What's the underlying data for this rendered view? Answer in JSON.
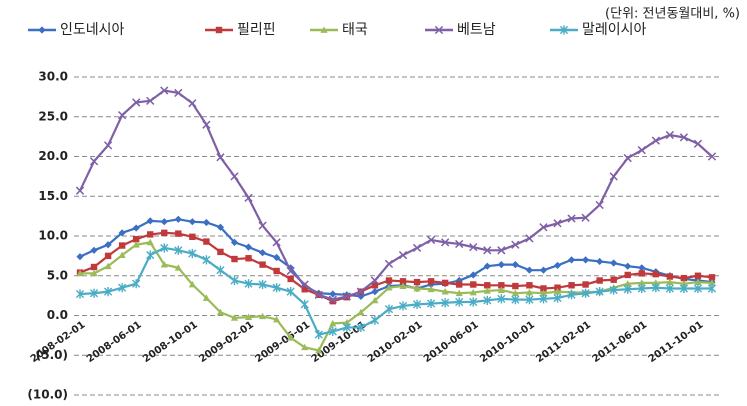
{
  "chart_data": {
    "type": "line",
    "unit_note": "(단위: 전년동월대비, %)",
    "categories": [
      "2008-02-01",
      null,
      null,
      null,
      "2008-06-01",
      null,
      null,
      null,
      "2008-10-01",
      null,
      null,
      null,
      "2009-02-01",
      null,
      null,
      null,
      "2009-06-01",
      null,
      null,
      null,
      "2009-10-01",
      null,
      null,
      null,
      "2010-02-01",
      null,
      null,
      null,
      "2010-06-01",
      null,
      null,
      null,
      "2010-10-01",
      null,
      null,
      null,
      "2011-02-01",
      null,
      null,
      null,
      "2011-06-01",
      null,
      null,
      null,
      "2011-10-01",
      null
    ],
    "series": [
      {
        "name": "인도네시아",
        "color": "#3a6fc4",
        "marker": "diamond",
        "values": [
          7.4,
          8.2,
          8.9,
          10.4,
          11.0,
          11.9,
          11.8,
          12.1,
          11.8,
          11.7,
          11.1,
          9.2,
          8.6,
          7.9,
          7.3,
          6.0,
          3.7,
          2.8,
          2.7,
          2.6,
          2.4,
          3.0,
          3.7,
          3.8,
          3.4,
          3.9,
          4.0,
          4.4,
          5.1,
          6.2,
          6.4,
          6.4,
          5.7,
          5.7,
          6.3,
          7.0,
          7.0,
          6.8,
          6.6,
          6.2,
          6.0,
          5.5,
          5.0,
          4.6,
          4.4,
          4.2
        ]
      },
      {
        "name": "필리핀",
        "color": "#c0393b",
        "marker": "square",
        "values": [
          5.4,
          6.1,
          7.5,
          8.8,
          9.6,
          10.2,
          10.4,
          10.3,
          9.9,
          9.3,
          8.0,
          7.1,
          7.2,
          6.4,
          5.6,
          4.6,
          3.3,
          2.6,
          1.8,
          2.3,
          3.0,
          3.8,
          4.4,
          4.3,
          4.2,
          4.3,
          4.1,
          3.9,
          3.9,
          3.8,
          3.8,
          3.7,
          3.8,
          3.4,
          3.5,
          3.8,
          3.9,
          4.4,
          4.5,
          5.1,
          5.3,
          5.2,
          4.9,
          4.7,
          5.0,
          4.8
        ]
      },
      {
        "name": "태국",
        "color": "#9bbb59",
        "marker": "triangle",
        "values": [
          5.3,
          5.3,
          6.2,
          7.6,
          8.9,
          9.2,
          6.4,
          6.0,
          3.9,
          2.2,
          0.4,
          -0.3,
          -0.2,
          -0.1,
          -0.5,
          -2.8,
          -4.0,
          -4.4,
          -1.0,
          -0.9,
          0.4,
          1.9,
          3.5,
          3.7,
          3.4,
          3.3,
          3.0,
          2.8,
          2.9,
          3.1,
          3.2,
          2.8,
          2.9,
          2.8,
          3.0,
          2.9,
          2.9,
          3.0,
          3.5,
          4.0,
          4.1,
          4.1,
          4.2,
          4.0,
          4.2,
          4.1
        ]
      },
      {
        "name": "베트남",
        "color": "#7f5fa6",
        "marker": "x",
        "values": [
          15.7,
          19.4,
          21.4,
          25.2,
          26.8,
          27.0,
          28.3,
          28.0,
          26.7,
          24.0,
          19.9,
          17.5,
          14.8,
          11.3,
          9.2,
          5.6,
          3.9,
          2.6,
          2.0,
          2.4,
          3.0,
          4.4,
          6.5,
          7.6,
          8.5,
          9.5,
          9.2,
          9.0,
          8.6,
          8.2,
          8.2,
          8.9,
          9.7,
          11.1,
          11.6,
          12.2,
          12.3,
          13.9,
          17.5,
          19.8,
          20.8,
          22.0,
          22.7,
          22.4,
          21.6,
          20.0
        ]
      },
      {
        "name": "말레이시아",
        "color": "#4bacc6",
        "marker": "star",
        "values": [
          2.7,
          2.8,
          3.0,
          3.5,
          4.0,
          7.6,
          8.5,
          8.2,
          7.8,
          7.0,
          5.7,
          4.4,
          4.0,
          3.9,
          3.5,
          3.0,
          1.4,
          -2.4,
          -2.0,
          -1.5,
          -1.5,
          -0.6,
          0.8,
          1.2,
          1.4,
          1.5,
          1.6,
          1.7,
          1.7,
          1.9,
          2.1,
          2.0,
          2.0,
          2.1,
          2.2,
          2.6,
          2.8,
          3.0,
          3.2,
          3.3,
          3.4,
          3.5,
          3.4,
          3.4,
          3.4,
          3.4
        ]
      }
    ],
    "ylim": [
      -10,
      30
    ],
    "yticks": [
      {
        "value": -10,
        "label": "(10.0)"
      },
      {
        "value": -5,
        "label": "(5.0)"
      },
      {
        "value": 0,
        "label": "0.0"
      },
      {
        "value": 5,
        "label": "5.0"
      },
      {
        "value": 10,
        "label": "10.0"
      },
      {
        "value": 15,
        "label": "15.0"
      },
      {
        "value": 20,
        "label": "20.0"
      },
      {
        "value": 25,
        "label": "25.0"
      },
      {
        "value": 30,
        "label": "30.0"
      }
    ],
    "grid": true
  }
}
